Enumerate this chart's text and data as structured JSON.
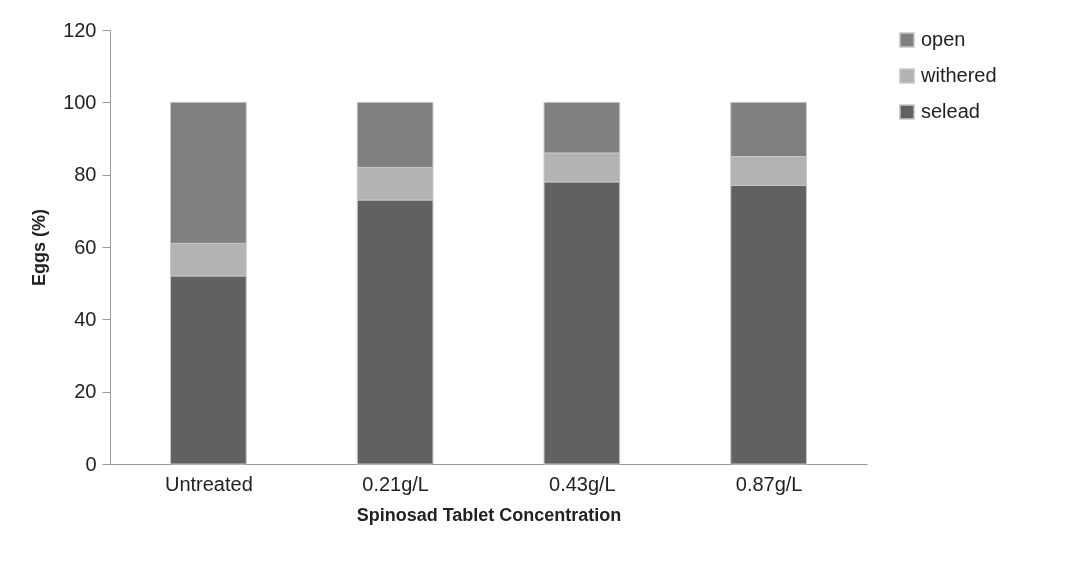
{
  "chart_data": {
    "type": "bar",
    "stacked": true,
    "xlabel": "Spinosad Tablet Concentration",
    "ylabel": "Eggs (%)",
    "categories": [
      "Untreated",
      "0.21g/L",
      "0.43g/L",
      "0.87g/L"
    ],
    "series": [
      {
        "name": "selead",
        "color": "#616161",
        "values": [
          52,
          73,
          78,
          77
        ]
      },
      {
        "name": "withered",
        "color": "#b3b3b3",
        "values": [
          9,
          9,
          8,
          8
        ]
      },
      {
        "name": "open",
        "color": "#808080",
        "values": [
          39,
          18,
          14,
          15
        ]
      }
    ],
    "ylim": [
      0,
      120
    ],
    "yticks": [
      0,
      20,
      40,
      60,
      80,
      100,
      120
    ],
    "grid": false,
    "legend": "right"
  }
}
